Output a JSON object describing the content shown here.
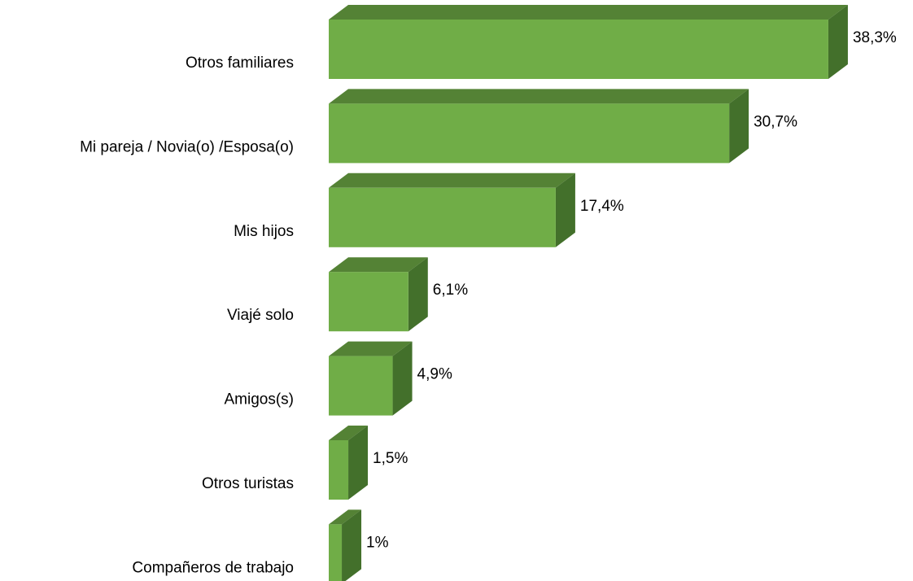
{
  "chart_data": {
    "type": "bar3d_horizontal",
    "categories": [
      "Otros familiares",
      "Mi pareja / Novia(o) /Esposa(o)",
      "Mis hijos",
      "Viajé solo",
      "Amigos(s)",
      "Otros turistas",
      "Compañeros de trabajo"
    ],
    "values": [
      38.3,
      30.7,
      17.4,
      6.1,
      4.9,
      1.5,
      1
    ],
    "value_labels": [
      "38,3%",
      "30,7%",
      "17,4%",
      "6,1%",
      "4,9%",
      "1,5%",
      "1%"
    ],
    "color": "#70ad47",
    "top_color": "#548235",
    "side_color": "#43702b"
  }
}
